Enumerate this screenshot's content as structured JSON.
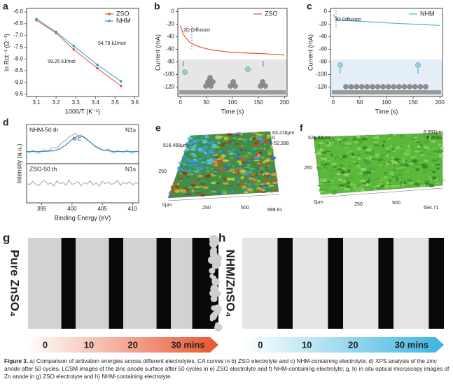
{
  "chart_data": [
    {
      "type": "scatter",
      "panel": "a",
      "xlabel": "1000/T (K⁻¹)",
      "ylabel": "ln Rct⁻¹ (Ω⁻¹)",
      "xlim": [
        3.05,
        3.62
      ],
      "ylim": [
        -9.6,
        -5.85
      ],
      "xticks": [
        3.1,
        3.2,
        3.3,
        3.4,
        3.5,
        3.6
      ],
      "yticks": [
        {
          "value": -6.0,
          "label": "-6.0"
        },
        -6.5,
        {
          "value": -7.0,
          "label": "-7.0"
        },
        -7.5,
        {
          "value": -8.0,
          "label": "-8.0"
        },
        -8.5,
        {
          "value": -9.0,
          "label": "-9.0"
        },
        -9.5
      ],
      "legend": "upper right",
      "series": [
        {
          "name": "ZSO",
          "color": "#e8552f",
          "x": [
            3.1,
            3.2,
            3.29,
            3.41,
            3.53
          ],
          "values": [
            -6.35,
            -6.9,
            -7.6,
            -8.4,
            -9.15
          ]
        },
        {
          "name": "NHM",
          "color": "#2a9fd8",
          "x": [
            3.1,
            3.2,
            3.29,
            3.41,
            3.53
          ],
          "values": [
            -6.3,
            -6.85,
            -7.45,
            -8.25,
            -8.95
          ]
        }
      ],
      "annotations": [
        {
          "text": "54.78 kJ/mol",
          "color": "#2a9fd8"
        },
        {
          "text": "59.25 kJ/mol",
          "color": "#e8552f"
        }
      ]
    },
    {
      "type": "line",
      "panel": "b",
      "xlabel": "Time (s)",
      "ylabel": "Current (mA)",
      "xlim": [
        -5,
        205
      ],
      "ylim": [
        -135,
        5
      ],
      "xticks": [
        0,
        50,
        100,
        150,
        200
      ],
      "yticks": [
        -120,
        -100,
        -80,
        -60,
        -40,
        -20,
        0
      ],
      "legend": "upper right",
      "series": [
        {
          "name": "ZSO",
          "color": "#e8552f",
          "x": [
            0,
            5,
            10,
            20,
            30,
            40,
            60,
            80,
            100,
            130,
            160,
            200
          ],
          "values": [
            -22,
            -35,
            -42,
            -50,
            -54,
            -57,
            -61,
            -63,
            -65,
            -66,
            -67,
            -69
          ]
        }
      ],
      "annotations": [
        {
          "text": "2D Diffusion"
        }
      ]
    },
    {
      "type": "line",
      "panel": "c",
      "xlabel": "Time (s)",
      "ylabel": "Current (mA)",
      "xlim": [
        -5,
        205
      ],
      "ylim": [
        -135,
        5
      ],
      "xticks": [
        0,
        50,
        100,
        150,
        200
      ],
      "yticks": [
        -120,
        -100,
        -80,
        -60,
        -40,
        -20,
        0
      ],
      "legend": "upper right",
      "series": [
        {
          "name": "NHM",
          "color": "#4db3da",
          "x": [
            0,
            5,
            10,
            20,
            40,
            60,
            100,
            150,
            200
          ],
          "values": [
            -5,
            -10,
            -13,
            -14,
            -15,
            -16,
            -18,
            -20,
            -22
          ]
        }
      ],
      "annotations": [
        {
          "text": "3D Diffusion"
        }
      ]
    },
    {
      "type": "line",
      "panel": "d",
      "ylabel": "Intensity (a.u.)",
      "xlim": [
        392.5,
        411
      ],
      "ylim": [
        0,
        1
      ],
      "series": [
        {
          "color": "#b0b0b0",
          "x": [
            392.5,
            393,
            393.5,
            394,
            394.5,
            395,
            395.5,
            396,
            396.5,
            397,
            397.5,
            398,
            398.5,
            399,
            399.5,
            400,
            400.5,
            401,
            401.5,
            402,
            402.5,
            403,
            403.5,
            404,
            404.5,
            405,
            405.5,
            406,
            406.5,
            407,
            407.5,
            408,
            408.5,
            409,
            409.5,
            410,
            410.5,
            411
          ],
          "values": [
            0.32,
            0.28,
            0.35,
            0.3,
            0.26,
            0.33,
            0.36,
            0.31,
            0.38,
            0.42,
            0.4,
            0.48,
            0.55,
            0.6,
            0.68,
            0.72,
            0.78,
            0.7,
            0.74,
            0.66,
            0.6,
            0.55,
            0.48,
            0.44,
            0.4,
            0.36,
            0.33,
            0.38,
            0.3,
            0.27,
            0.34,
            0.31,
            0.29,
            0.35,
            0.3,
            0.26,
            0.32,
            0.3
          ]
        },
        {
          "color": "#2b8fd6",
          "x": [
            392.5,
            395,
            397,
            398,
            399,
            400,
            401,
            402,
            403,
            404,
            405,
            407,
            411
          ],
          "values": [
            0.31,
            0.31,
            0.33,
            0.38,
            0.48,
            0.62,
            0.71,
            0.68,
            0.55,
            0.42,
            0.35,
            0.31,
            0.31
          ]
        }
      ],
      "annotations": [
        {
          "text": "NHM-50 th"
        },
        {
          "text": "N1s"
        },
        {
          "text": "N-C",
          "color": "#2b8fd6"
        }
      ]
    },
    {
      "type": "line",
      "xlabel": "Binding Energy (eV)",
      "xlim": [
        392.5,
        411
      ],
      "ylim": [
        0,
        1
      ],
      "xticks": [
        395,
        400,
        405,
        410
      ],
      "series": [
        {
          "color": "#b0b0b0",
          "x": [
            392.5,
            393,
            393.5,
            394,
            394.5,
            395,
            395.5,
            396,
            396.5,
            397,
            397.5,
            398,
            398.5,
            399,
            399.5,
            400,
            400.5,
            401,
            401.5,
            402,
            402.5,
            403,
            403.5,
            404,
            404.5,
            405,
            405.5,
            406,
            406.5,
            407,
            407.5,
            408,
            408.5,
            409,
            409.5,
            410,
            410.5,
            411
          ],
          "values": [
            0.5,
            0.46,
            0.55,
            0.48,
            0.44,
            0.53,
            0.57,
            0.47,
            0.51,
            0.43,
            0.56,
            0.49,
            0.52,
            0.45,
            0.58,
            0.47,
            0.5,
            0.54,
            0.44,
            0.52,
            0.48,
            0.56,
            0.46,
            0.51,
            0.43,
            0.55,
            0.49,
            0.53,
            0.47,
            0.5,
            0.57,
            0.45,
            0.52,
            0.48,
            0.54,
            0.46,
            0.51,
            0.49
          ]
        }
      ],
      "annotations": [
        {
          "text": "ZSO-50 th"
        },
        {
          "text": "N1s"
        }
      ]
    }
  ],
  "surfaces": [
    {
      "panel": "e",
      "style": "colorful",
      "labels": [
        "516.458μm",
        "63.216μm",
        "0",
        "-52.398",
        "250",
        "0μm",
        "250",
        "500",
        "688.61"
      ]
    },
    {
      "panel": "f",
      "style": "green",
      "labels": [
        "521.88μm",
        "8.887μm",
        "-6.763",
        "250",
        "0μm",
        "250",
        "500",
        "694.71"
      ]
    }
  ],
  "microscopy": [
    {
      "panel": "g",
      "label": "Pure ZnSO₄",
      "color": "#e8552f",
      "times": [
        "0",
        "10",
        "20",
        "30 mins"
      ]
    },
    {
      "panel": "h",
      "label": "NHM/ZnSO₄",
      "color": "#3ab5e0",
      "times": [
        "0",
        "10",
        "20",
        "30 mins"
      ]
    }
  ],
  "caption": {
    "lead": "Figure 3.",
    "text": "a) Comparison of activation energies across different electrolytes; CA curves in b) ZSO electrolyte and c) NHM-containing electrolyte; d) XPS analysis of the zinc anode after 50 cycles. LCSM images of the zinc anode surface after 50 cycles in e) ZSO electrolyte and f) NHM-containing electrolyte; g, h) in situ optical microscopy images of Zn anode in g) ZSO electrolyte and h) NHM-containing electrolyte."
  }
}
